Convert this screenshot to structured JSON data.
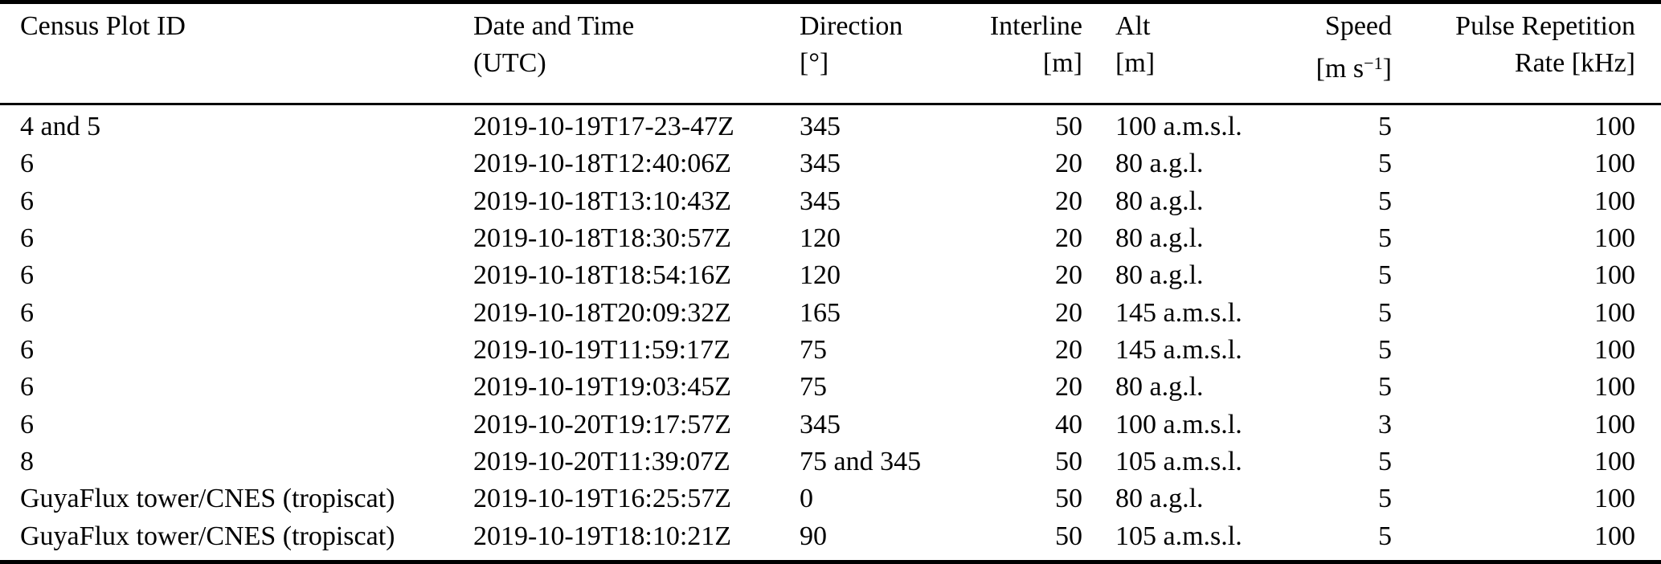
{
  "page": {
    "background_color": "#ffffff",
    "text_color": "#000000",
    "rule_color": "#000000"
  },
  "table": {
    "header": {
      "columns": [
        {
          "label": "Census Plot ID",
          "unit": ""
        },
        {
          "label": "Date and Time",
          "unit": "(UTC)"
        },
        {
          "label": "Direction",
          "unit": "[°]"
        },
        {
          "label": "Interline",
          "unit": "[m]"
        },
        {
          "label": "Alt",
          "unit": "[m]"
        },
        {
          "label": "Speed",
          "unit_pre": "[m s",
          "unit_sup": "−1",
          "unit_post": "]"
        },
        {
          "label": "Pulse Repetition",
          "unit": "Rate [kHz]"
        }
      ]
    },
    "rows": [
      [
        "4 and 5",
        "2019-10-19T17-23-47Z",
        "345",
        "50",
        "100 a.m.s.l.",
        "5",
        "100"
      ],
      [
        "6",
        "2019-10-18T12:40:06Z",
        "345",
        "20",
        "80 a.g.l.",
        "5",
        "100"
      ],
      [
        "6",
        "2019-10-18T13:10:43Z",
        "345",
        "20",
        "80 a.g.l.",
        "5",
        "100"
      ],
      [
        "6",
        "2019-10-18T18:30:57Z",
        "120",
        "20",
        "80 a.g.l.",
        "5",
        "100"
      ],
      [
        "6",
        "2019-10-18T18:54:16Z",
        "120",
        "20",
        "80 a.g.l.",
        "5",
        "100"
      ],
      [
        "6",
        "2019-10-18T20:09:32Z",
        "165",
        "20",
        "145 a.m.s.l.",
        "5",
        "100"
      ],
      [
        "6",
        "2019-10-19T11:59:17Z",
        "75",
        "20",
        "145 a.m.s.l.",
        "5",
        "100"
      ],
      [
        "6",
        "2019-10-19T19:03:45Z",
        "75",
        "20",
        "80 a.g.l.",
        "5",
        "100"
      ],
      [
        "6",
        "2019-10-20T19:17:57Z",
        "345",
        "40",
        "100 a.m.s.l.",
        "3",
        "100"
      ],
      [
        "8",
        "2019-10-20T11:39:07Z",
        "75 and 345",
        "50",
        "105 a.m.s.l.",
        "5",
        "100"
      ],
      [
        "GuyaFlux tower/CNES (tropiscat)",
        "2019-10-19T16:25:57Z",
        "0",
        "50",
        "80 a.g.l.",
        "5",
        "100"
      ],
      [
        "GuyaFlux tower/CNES (tropiscat)",
        "2019-10-19T18:10:21Z",
        "90",
        "50",
        "105 a.m.s.l.",
        "5",
        "100"
      ]
    ]
  }
}
